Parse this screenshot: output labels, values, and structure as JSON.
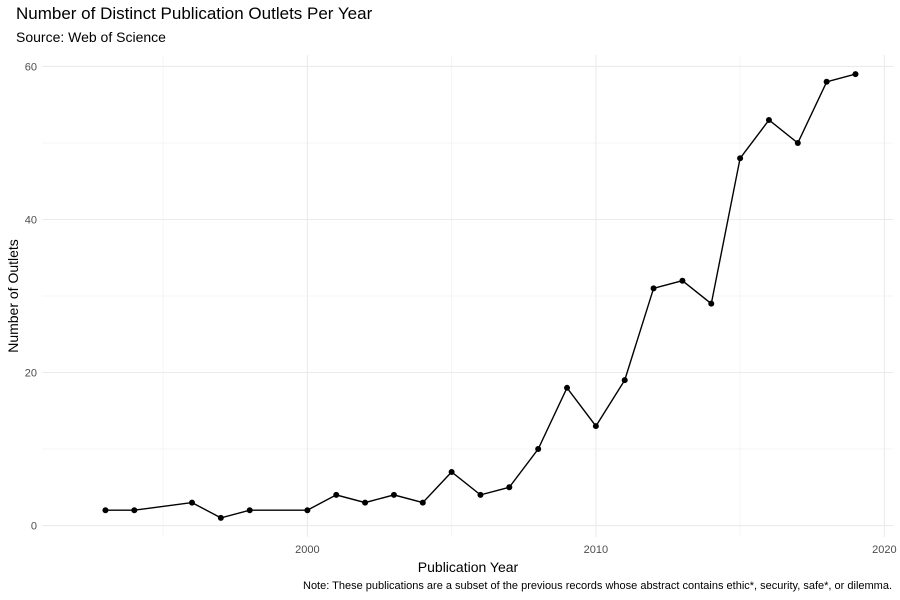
{
  "chart_data": {
    "type": "line",
    "title": "Number of Distinct Publication Outlets Per Year",
    "subtitle": "Source: Web of Science",
    "xlabel": "Publication Year",
    "ylabel": "Number of Outlets",
    "caption": "Note: These publications are a subset of the previous records whose abstract contains ethic*, security, safe*, or dilemma.",
    "x_ticks": [
      "2000",
      "2010",
      "2020"
    ],
    "y_ticks": [
      "0",
      "20",
      "40",
      "60"
    ],
    "xlim": [
      1990.8,
      2020.3
    ],
    "ylim": [
      -1.5,
      61.5
    ],
    "grid": true,
    "legend": "none",
    "line_color": "#000000",
    "x": [
      1993,
      1994,
      1996,
      1997,
      1998,
      2000,
      2001,
      2002,
      2003,
      2004,
      2005,
      2006,
      2007,
      2008,
      2009,
      2010,
      2011,
      2012,
      2013,
      2014,
      2015,
      2016,
      2017,
      2018,
      2019
    ],
    "values": [
      2,
      2,
      3,
      1,
      2,
      2,
      4,
      3,
      4,
      3,
      7,
      4,
      5,
      10,
      18,
      13,
      19,
      31,
      32,
      29,
      48,
      53,
      50,
      58,
      59
    ]
  }
}
